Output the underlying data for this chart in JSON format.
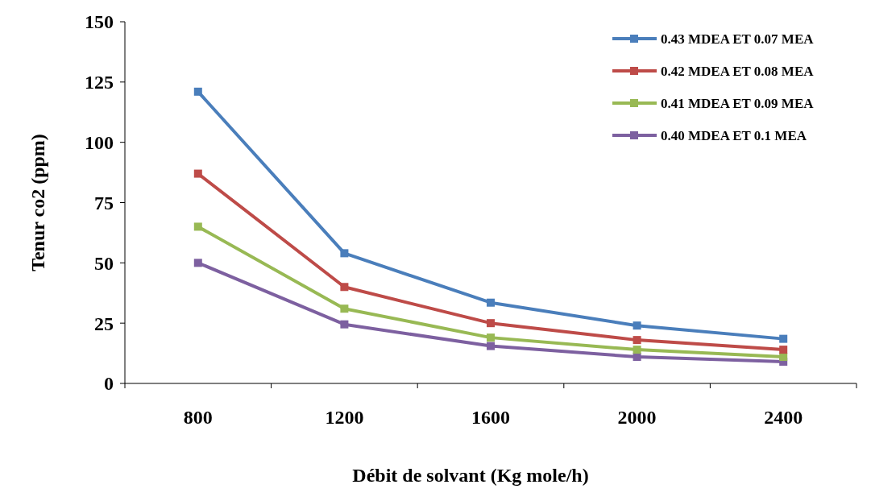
{
  "chart_data": {
    "type": "line",
    "xlabel": "Débit de solvant (Kg mole/h)",
    "ylabel": "Tenur co2 (ppm)",
    "categories": [
      "800",
      "1200",
      "1600",
      "2000",
      "2400"
    ],
    "ylim": [
      0,
      150
    ],
    "yticks": [
      0,
      25,
      50,
      75,
      100,
      125,
      150
    ],
    "grid": false,
    "legend": "top right",
    "marker": "square",
    "line_style": "solid",
    "series": [
      {
        "name": "0.43 MDEA ET 0.07 MEA",
        "color": "#4a7ebb",
        "values": [
          121,
          54,
          33.5,
          24,
          18.5
        ]
      },
      {
        "name": "0.42 MDEA ET 0.08 MEA",
        "color": "#be4b48",
        "values": [
          87,
          40,
          25,
          18,
          14
        ]
      },
      {
        "name": "0.41 MDEA ET 0.09 MEA",
        "color": "#98b954",
        "values": [
          65,
          31,
          19,
          14,
          11
        ]
      },
      {
        "name": "0.40 MDEA ET 0.1 MEA",
        "color": "#7d60a0",
        "values": [
          50,
          24.5,
          15.5,
          11,
          9
        ]
      }
    ]
  }
}
